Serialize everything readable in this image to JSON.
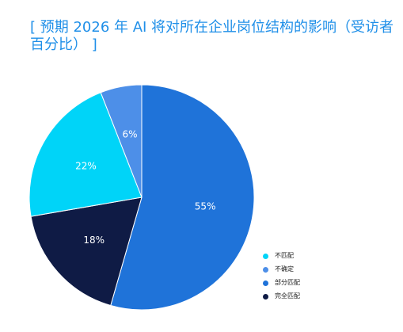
{
  "chart_data": {
    "type": "pie",
    "title": "[ 预期 2026 年 AI 将对所在企业岗位结构的影响（受访者百分比） ]",
    "slices": [
      {
        "name": "部分匹配",
        "value": 55,
        "label": "55%",
        "color": "#1f73d9"
      },
      {
        "name": "完全匹配",
        "value": 18,
        "label": "18%",
        "color": "#0f1b45"
      },
      {
        "name": "不匹配",
        "value": 22,
        "label": "22%",
        "color": "#00d4f8"
      },
      {
        "name": "不确定",
        "value": 6,
        "label": "6%",
        "color": "#4d8fe8"
      }
    ],
    "legend": {
      "position": "bottom-right",
      "items": [
        {
          "name": "不匹配",
          "color": "#00d4f8"
        },
        {
          "name": "不确定",
          "color": "#4d8fe8"
        },
        {
          "name": "部分匹配",
          "color": "#1f73d9"
        },
        {
          "name": "完全匹配",
          "color": "#0f1b45"
        }
      ]
    }
  }
}
